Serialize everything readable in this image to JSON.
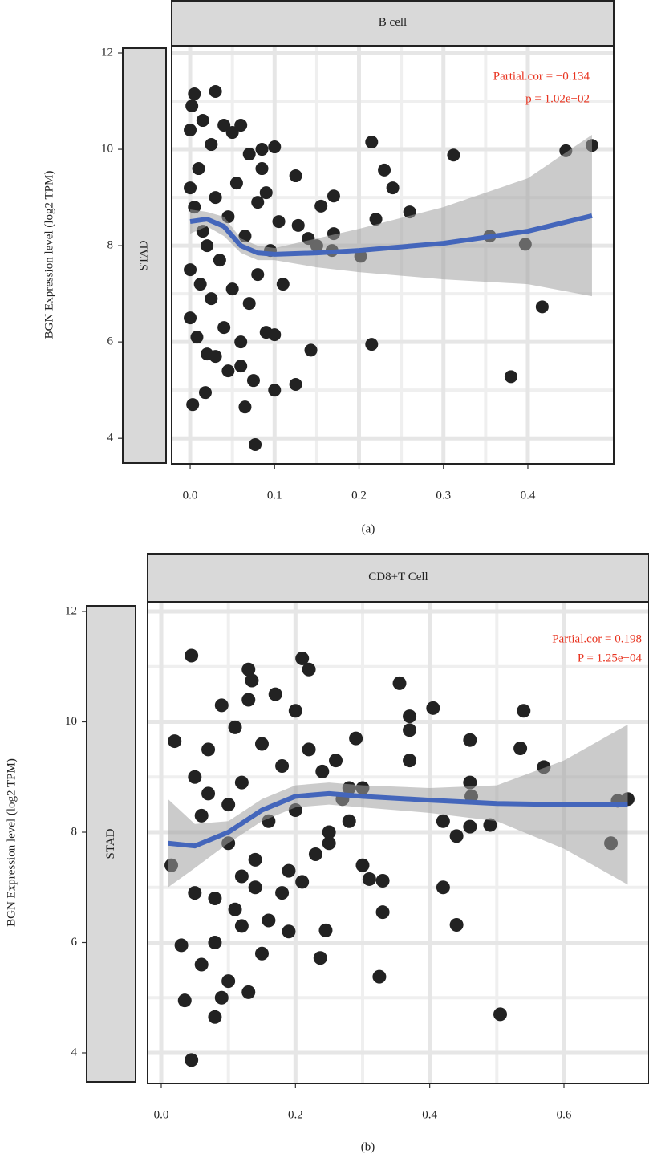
{
  "chart_data": [
    {
      "type": "scatter",
      "panel_label": "B cell",
      "row_label": "STAD",
      "y_label": "BGN Expression level (log2 TPM)",
      "caption": "(a)",
      "annotations": [
        "Partial.cor = −0.134",
        "p = 1.02e−02"
      ],
      "annotation_color": "#e8321e",
      "xlim": [
        -0.0219,
        0.5017
      ],
      "ylim": [
        3.47,
        12.15
      ],
      "xticks": [
        {
          "value": 0,
          "label": "0.0"
        },
        0.1,
        0.2,
        0.3,
        0.4
      ],
      "yticks": [
        4,
        6,
        8,
        10,
        12
      ],
      "grid": true,
      "minor_grid": true,
      "series": [
        {
          "color": "#222222",
          "x": [
            0.215,
            0.23,
            0.24,
            0.17,
            0.155,
            0.22,
            0.26,
            0.17,
            0.15,
            0.168,
            0.202,
            0.312,
            0.445,
            0.476,
            0.355,
            0.397,
            0.417,
            0.215,
            0.143,
            0.38,
            0.125,
            0.1,
            0.077,
            0.065,
            0.003,
            0.018,
            0.125,
            0.128,
            0.14,
            0.0,
            0.0,
            0.0,
            0.0,
            0.002,
            0.005,
            0.005,
            0.008,
            0.01,
            0.012,
            0.015,
            0.02,
            0.02,
            0.025,
            0.025,
            0.03,
            0.03,
            0.035,
            0.04,
            0.04,
            0.045,
            0.05,
            0.05,
            0.055,
            0.06,
            0.06,
            0.065,
            0.07,
            0.07,
            0.075,
            0.08,
            0.08,
            0.085,
            0.09,
            0.09,
            0.095,
            0.1,
            0.1,
            0.105,
            0.11,
            0.03,
            0.015,
            0.06,
            0.045,
            0.085
          ],
          "values": [
            10.15,
            9.57,
            9.2,
            9.03,
            8.82,
            8.55,
            8.7,
            8.25,
            8.0,
            7.9,
            7.78,
            9.88,
            9.97,
            10.08,
            8.2,
            8.03,
            6.73,
            5.95,
            5.83,
            5.28,
            5.12,
            5.0,
            3.87,
            4.65,
            4.7,
            4.95,
            9.45,
            8.42,
            8.15,
            10.4,
            9.2,
            7.5,
            6.5,
            10.9,
            11.15,
            8.8,
            6.1,
            9.6,
            7.2,
            10.6,
            8.0,
            5.75,
            10.1,
            6.9,
            11.2,
            9.0,
            7.7,
            10.5,
            6.3,
            8.6,
            10.35,
            7.1,
            9.3,
            10.5,
            5.5,
            8.2,
            9.9,
            6.8,
            5.2,
            8.9,
            7.4,
            10.0,
            6.2,
            9.1,
            7.9,
            10.05,
            6.15,
            8.5,
            7.2,
            5.7,
            8.3,
            6.0,
            5.4,
            9.6
          ]
        }
      ],
      "fit": {
        "color": "#4466bb",
        "band_color": "#a0a0a0",
        "x": [
          0,
          0.02,
          0.04,
          0.06,
          0.08,
          0.1,
          0.15,
          0.2,
          0.3,
          0.4,
          0.476
        ],
        "values": [
          8.5,
          8.55,
          8.4,
          8.0,
          7.85,
          7.82,
          7.85,
          7.9,
          8.05,
          8.3,
          8.62
        ],
        "lower": [
          8.25,
          8.4,
          8.2,
          7.85,
          7.7,
          7.7,
          7.55,
          7.45,
          7.3,
          7.2,
          6.95
        ],
        "upper": [
          8.75,
          8.7,
          8.6,
          8.15,
          8.0,
          7.95,
          8.15,
          8.35,
          8.8,
          9.4,
          10.3
        ]
      }
    },
    {
      "type": "scatter",
      "panel_label": "CD8+T Cell",
      "row_label": "STAD",
      "y_label": "BGN Expression level (log2 TPM)",
      "caption": "(b)",
      "annotations": [
        "Partial.cor = 0.198",
        "P = 1.25e−04"
      ],
      "annotation_color": "#e8321e",
      "xlim": [
        -0.0203,
        0.7267
      ],
      "ylim": [
        3.447,
        12.175
      ],
      "xticks": [
        {
          "value": 0,
          "label": "0.0"
        },
        0.2,
        0.4,
        0.6
      ],
      "yticks": [
        4,
        6,
        8,
        10,
        12
      ],
      "grid": true,
      "minor_grid": true,
      "series": [
        {
          "color": "#222222",
          "x": [
            0.045,
            0.045,
            0.08,
            0.035,
            0.505,
            0.325,
            0.237,
            0.245,
            0.33,
            0.44,
            0.42,
            0.405,
            0.355,
            0.54,
            0.535,
            0.46,
            0.57,
            0.46,
            0.462,
            0.46,
            0.49,
            0.42,
            0.44,
            0.67,
            0.695,
            0.68,
            0.37,
            0.37,
            0.37,
            0.33,
            0.3,
            0.31,
            0.21,
            0.22,
            0.13,
            0.135,
            0.015,
            0.02,
            0.03,
            0.05,
            0.06,
            0.07,
            0.08,
            0.09,
            0.1,
            0.1,
            0.11,
            0.12,
            0.12,
            0.13,
            0.14,
            0.15,
            0.15,
            0.16,
            0.17,
            0.18,
            0.18,
            0.19,
            0.2,
            0.2,
            0.21,
            0.22,
            0.23,
            0.24,
            0.25,
            0.26,
            0.27,
            0.28,
            0.29,
            0.3,
            0.1,
            0.08,
            0.06,
            0.14,
            0.16,
            0.12,
            0.09,
            0.07,
            0.11,
            0.25,
            0.28,
            0.19,
            0.13,
            0.05
          ],
          "values": [
            11.2,
            3.87,
            4.65,
            4.95,
            4.7,
            5.38,
            5.72,
            6.22,
            6.55,
            6.32,
            7.0,
            10.25,
            10.7,
            10.2,
            9.52,
            9.67,
            9.18,
            8.9,
            8.65,
            8.1,
            8.13,
            8.2,
            7.93,
            7.8,
            8.6,
            8.57,
            10.1,
            9.85,
            9.3,
            7.12,
            7.4,
            7.15,
            11.15,
            10.95,
            10.95,
            10.75,
            7.4,
            9.65,
            5.95,
            9.0,
            8.3,
            9.5,
            6.8,
            10.3,
            7.8,
            5.3,
            9.9,
            8.9,
            6.3,
            10.4,
            7.5,
            9.6,
            5.8,
            8.2,
            10.5,
            6.9,
            9.2,
            7.3,
            10.2,
            8.4,
            7.1,
            9.5,
            7.6,
            9.1,
            8.0,
            9.3,
            8.6,
            8.8,
            9.7,
            8.8,
            8.5,
            6.0,
            5.6,
            7.0,
            6.4,
            7.2,
            5.0,
            8.7,
            6.6,
            7.8,
            8.2,
            6.2,
            5.1,
            6.9
          ]
        }
      ],
      "fit": {
        "color": "#4466bb",
        "band_color": "#a0a0a0",
        "x": [
          0.01,
          0.05,
          0.1,
          0.15,
          0.2,
          0.25,
          0.3,
          0.4,
          0.5,
          0.6,
          0.695
        ],
        "values": [
          7.8,
          7.75,
          8.0,
          8.4,
          8.65,
          8.7,
          8.65,
          8.58,
          8.52,
          8.5,
          8.5
        ],
        "lower": [
          7.0,
          7.35,
          7.8,
          8.2,
          8.45,
          8.5,
          8.45,
          8.35,
          8.2,
          7.7,
          7.05
        ],
        "upper": [
          8.6,
          8.15,
          8.2,
          8.6,
          8.85,
          8.9,
          8.85,
          8.8,
          8.85,
          9.3,
          9.95
        ]
      }
    }
  ]
}
